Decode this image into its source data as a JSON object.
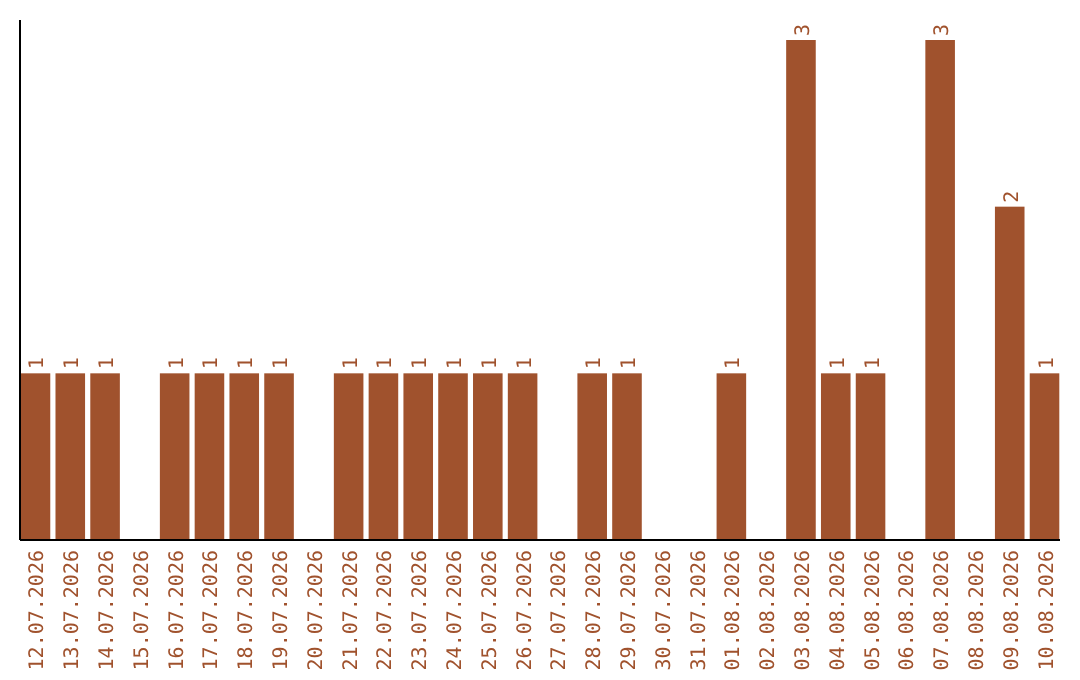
{
  "chart_data": {
    "type": "bar",
    "categories": [
      "12.07.2026",
      "13.07.2026",
      "14.07.2026",
      "15.07.2026",
      "16.07.2026",
      "17.07.2026",
      "18.07.2026",
      "19.07.2026",
      "20.07.2026",
      "21.07.2026",
      "22.07.2026",
      "23.07.2026",
      "24.07.2026",
      "25.07.2026",
      "26.07.2026",
      "27.07.2026",
      "28.07.2026",
      "29.07.2026",
      "30.07.2026",
      "31.07.2026",
      "01.08.2026",
      "02.08.2026",
      "03.08.2026",
      "04.08.2026",
      "05.08.2026",
      "06.08.2026",
      "07.08.2026",
      "08.08.2026",
      "09.08.2026",
      "10.08.2026"
    ],
    "values": [
      1,
      1,
      1,
      0,
      1,
      1,
      1,
      1,
      0,
      1,
      1,
      1,
      1,
      1,
      1,
      0,
      1,
      1,
      0,
      0,
      1,
      0,
      3,
      1,
      1,
      0,
      3,
      0,
      2,
      1
    ],
    "value_labels": [
      "1",
      "1",
      "1",
      null,
      "1",
      "1",
      "1",
      "1",
      null,
      "1",
      "1",
      "1",
      "1",
      "1",
      "1",
      null,
      "1",
      "1",
      null,
      null,
      "1",
      null,
      "3",
      "1",
      "1",
      null,
      "3",
      null,
      "2",
      "1"
    ],
    "color": "#a0522d",
    "tick_labels": "x"
  }
}
